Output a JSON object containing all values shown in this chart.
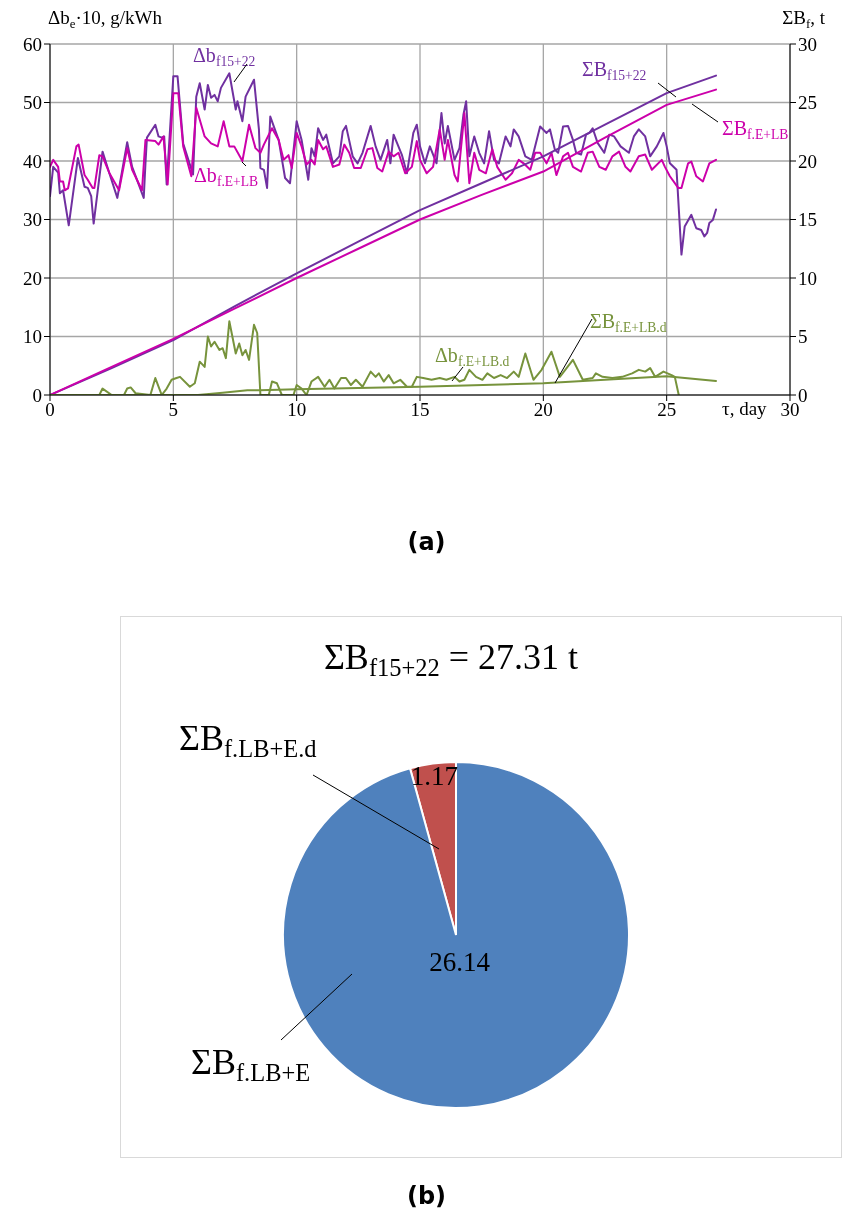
{
  "chart_data": [
    {
      "type": "line",
      "xlabel": "τ, day",
      "ylabel": "Δb$_{e}$·10, g/kWh",
      "y2label": "ΣB$_{f}$, t",
      "annotations": [
        "(a)"
      ],
      "xlim": [
        0,
        30
      ],
      "xticks": [
        0,
        5,
        10,
        15,
        20,
        25,
        30
      ],
      "ylim": [
        0,
        60
      ],
      "yticks": [
        0,
        10,
        20,
        30,
        40,
        50,
        60
      ],
      "y2lim": [
        0,
        30
      ],
      "y2ticks": [
        0,
        5,
        10,
        15,
        20,
        25,
        30
      ],
      "grid": true,
      "marker": "none",
      "line_style": "solid",
      "series": [
        {
          "name": "Δb$_{f15+22}$",
          "color": "#7030a0",
          "x": [
            0,
            0.13,
            0.33,
            0.4,
            0.53,
            0.76,
            1.13,
            1.4,
            1.53,
            1.67,
            1.77,
            2.13,
            2.4,
            2.73,
            3.13,
            3.33,
            3.8,
            3.87,
            3.93,
            4.27,
            4.4,
            4.53,
            4.63,
            4.73,
            5.0,
            5.17,
            5.4,
            5.8,
            5.93,
            6.07,
            6.27,
            6.4,
            6.53,
            6.67,
            6.8,
            6.93,
            7.27,
            7.53,
            7.6,
            7.8,
            7.93,
            8.27,
            8.47,
            8.53,
            8.67,
            8.8,
            8.93,
            9.27,
            9.53,
            9.73,
            10.0,
            10.2,
            10.47,
            10.6,
            10.73,
            10.87,
            11.07,
            11.2,
            11.47,
            11.73,
            11.87,
            12.0,
            12.27,
            12.47,
            12.67,
            13.0,
            13.2,
            13.4,
            13.67,
            13.8,
            13.93,
            14.27,
            14.47,
            14.73,
            14.87,
            15.0,
            15.2,
            15.4,
            15.67,
            15.87,
            16.0,
            16.13,
            16.4,
            16.6,
            16.76,
            16.87,
            17.0,
            17.2,
            17.4,
            17.6,
            17.8,
            18.0,
            18.2,
            18.47,
            18.67,
            18.8,
            19.0,
            19.27,
            19.53,
            19.87,
            20.13,
            20.27,
            20.47,
            20.6,
            20.8,
            21.0,
            21.2,
            21.33,
            21.53,
            21.73,
            21.87,
            22.0,
            22.2,
            22.47,
            22.67,
            22.87,
            23.13,
            23.47,
            23.67,
            23.87,
            24.13,
            24.33,
            24.6,
            24.73,
            24.87,
            25.0,
            25.13,
            25.4,
            25.6,
            25.73,
            26.0,
            26.2,
            26.4,
            26.53,
            26.64,
            26.73,
            26.87,
            27.0
          ],
          "values": [
            34,
            39,
            38,
            34.5,
            35,
            29,
            40.5,
            35.6,
            35.4,
            34,
            29.3,
            41.6,
            38,
            33.7,
            43.2,
            39,
            33.7,
            39.6,
            44,
            46.2,
            44.2,
            44,
            44.2,
            36,
            54.5,
            54.5,
            43,
            37.7,
            51,
            53.3,
            48.8,
            53,
            50.8,
            51.3,
            50.2,
            52.5,
            55,
            48.8,
            50.2,
            46.8,
            51,
            53.9,
            45.4,
            38.8,
            38.5,
            35.4,
            47.6,
            43.6,
            37.1,
            36.2,
            46.8,
            43.6,
            36.8,
            42.2,
            40.8,
            45.6,
            43.6,
            44.5,
            39.6,
            40.8,
            45.1,
            46,
            40.8,
            39.6,
            41.4,
            46,
            42.5,
            40.2,
            43.6,
            39.6,
            44.5,
            41,
            37.9,
            44.8,
            46.2,
            42.5,
            39.6,
            42.5,
            39.6,
            48.2,
            43,
            46,
            40.2,
            42.2,
            47.9,
            50.2,
            40.8,
            44.2,
            41.4,
            39.6,
            45.1,
            40.2,
            39.6,
            44.2,
            42.5,
            45.4,
            44.2,
            40.8,
            40.2,
            45.9,
            44.8,
            45.4,
            41.9,
            41.4,
            45.9,
            46,
            43.6,
            41.4,
            41.1,
            44.5,
            44.8,
            45.6,
            43.1,
            41.4,
            44.5,
            44.2,
            42.5,
            41.4,
            44.2,
            45.4,
            44.2,
            40.8,
            42.5,
            43.6,
            44.8,
            42.5,
            39.6,
            38.5,
            24,
            28.8,
            30.8,
            28.5,
            28.2,
            27.1,
            27.7,
            29.4,
            29.9,
            31.7
          ]
        },
        {
          "name": "Δb$_{f.E+LB}$",
          "color": "#cc00aa",
          "x": [
            0,
            0.13,
            0.33,
            0.4,
            0.53,
            0.6,
            0.73,
            1.07,
            1.16,
            1.4,
            1.53,
            1.73,
            1.8,
            2.0,
            2.13,
            2.4,
            2.8,
            3.13,
            3.33,
            3.73,
            3.87,
            4.27,
            4.4,
            4.6,
            4.77,
            5.0,
            5.2,
            5.4,
            5.73,
            5.93,
            6.27,
            6.53,
            6.8,
            7.04,
            7.27,
            7.47,
            7.8,
            8.07,
            8.33,
            8.53,
            8.67,
            9.0,
            9.27,
            9.47,
            9.67,
            9.8,
            10.0,
            10.2,
            10.4,
            10.6,
            10.73,
            10.87,
            11.07,
            11.2,
            11.47,
            11.73,
            11.93,
            12.13,
            12.33,
            12.6,
            12.87,
            13.07,
            13.27,
            13.47,
            13.73,
            13.93,
            14.13,
            14.4,
            14.67,
            14.87,
            15.0,
            15.27,
            15.53,
            15.8,
            16.0,
            16.13,
            16.4,
            16.53,
            16.8,
            17.0,
            17.2,
            17.4,
            17.67,
            17.93,
            18.13,
            18.47,
            18.73,
            19.0,
            19.2,
            19.47,
            19.67,
            19.87,
            20.13,
            20.33,
            20.53,
            20.8,
            21.0,
            21.2,
            21.53,
            21.8,
            22.0,
            22.27,
            22.53,
            22.8,
            23.07,
            23.33,
            23.53,
            23.87,
            24.13,
            24.4,
            24.8,
            24.93,
            25.13,
            25.47,
            25.6,
            25.87,
            26.0,
            26.2,
            26.47,
            26.73,
            27.0
          ],
          "values": [
            39,
            40.2,
            39,
            36.5,
            36.5,
            35,
            35.3,
            42.5,
            42.8,
            37.6,
            36.8,
            35.4,
            35.4,
            41,
            40.8,
            38,
            35,
            42.2,
            38.5,
            35,
            43.6,
            43.4,
            42.8,
            44.2,
            36,
            51.6,
            51.6,
            42.5,
            37.4,
            49.1,
            44.2,
            43,
            42.5,
            46.8,
            42.5,
            42.5,
            40,
            46.2,
            42.2,
            41.4,
            42.8,
            45.6,
            43.6,
            40.2,
            41,
            38.8,
            44.8,
            42.5,
            39.4,
            40.2,
            39.4,
            43.6,
            42,
            42.5,
            39,
            39.4,
            42.8,
            41.4,
            38.8,
            38.8,
            42,
            42.2,
            38.8,
            38.2,
            41.6,
            40.8,
            41.4,
            37.9,
            39,
            43.4,
            40.2,
            37.9,
            39,
            45.4,
            40.2,
            43.6,
            37.6,
            36.5,
            48.2,
            36.2,
            41.4,
            38.5,
            37.9,
            42,
            39,
            36.8,
            37.9,
            40.2,
            39.6,
            38.5,
            41.4,
            41.4,
            39.6,
            41.4,
            37.6,
            40.8,
            41.4,
            39,
            38.2,
            41.4,
            41.6,
            39,
            38.5,
            40.8,
            41.6,
            39,
            38.2,
            40.8,
            41.1,
            38.5,
            40.2,
            39,
            37.4,
            35.4,
            35.4,
            39.6,
            39.9,
            37.4,
            36.5,
            39.6,
            40.2
          ]
        },
        {
          "name": "Δb$_{f.E+LB.d}$",
          "color": "#77933c",
          "x": [
            0,
            2.0,
            2.13,
            2.5,
            3.0,
            3.13,
            3.27,
            3.47,
            4.07,
            4.27,
            4.53,
            4.73,
            4.93,
            5.13,
            5.27,
            5.67,
            5.87,
            6.07,
            6.27,
            6.4,
            6.53,
            6.67,
            6.87,
            7.0,
            7.13,
            7.27,
            7.53,
            7.67,
            7.8,
            7.93,
            8.07,
            8.27,
            8.4,
            8.53,
            8.87,
            9.0,
            9.2,
            9.4,
            9.87,
            10.0,
            10.2,
            10.4,
            10.6,
            10.87,
            11.13,
            11.33,
            11.53,
            11.8,
            12.0,
            12.2,
            12.4,
            12.67,
            13.0,
            13.2,
            13.33,
            13.53,
            13.73,
            13.93,
            14.2,
            14.47,
            14.67,
            14.87,
            15.13,
            15.47,
            15.8,
            16.07,
            16.4,
            16.6,
            16.8,
            17.0,
            17.27,
            17.53,
            17.73,
            18.0,
            18.27,
            18.53,
            18.8,
            19.0,
            19.27,
            19.6,
            19.93,
            20.33,
            20.67,
            21.2,
            21.6,
            22.0,
            22.13,
            22.4,
            22.8,
            23.2,
            23.6,
            23.87,
            24.13,
            24.33,
            24.53,
            24.87,
            25.2,
            25.33,
            25.49
          ],
          "values": [
            0,
            0,
            1.1,
            0,
            0,
            1.1,
            1.3,
            0.3,
            0,
            2.9,
            0,
            1.1,
            2.6,
            2.9,
            3.1,
            1.4,
            2.0,
            5.7,
            4.8,
            10,
            8.3,
            9.1,
            7.7,
            8,
            6.3,
            12.6,
            7.1,
            8.8,
            6.8,
            7.7,
            6.0,
            12,
            10.6,
            0,
            0,
            2.3,
            2,
            0,
            0,
            1.7,
            1.1,
            0,
            2.3,
            3.1,
            1.4,
            2.6,
            1.1,
            2.9,
            2.9,
            1.7,
            2.6,
            1.4,
            4,
            3.1,
            3.7,
            2.3,
            3.4,
            2,
            2.6,
            1.4,
            1.4,
            3.1,
            2.9,
            2.6,
            2.9,
            2.6,
            3.1,
            2.3,
            2.6,
            4.3,
            3.1,
            2.6,
            3.7,
            2.9,
            3.4,
            2.9,
            4,
            3.1,
            7.1,
            2.6,
            4.3,
            7.4,
            3.1,
            6.0,
            2.6,
            2.9,
            3.7,
            3.1,
            2.9,
            3.1,
            3.7,
            4.3,
            4.0,
            4.6,
            3.1,
            4.0,
            3.4,
            3.1,
            0
          ]
        },
        {
          "name": "ΣB$_{f15+22}$",
          "color": "#7030a0",
          "axis": "y2",
          "x": [
            0,
            2.5,
            5,
            7.5,
            10,
            12.5,
            15,
            17.5,
            20,
            22.5,
            25,
            27
          ],
          "values": [
            0,
            2.3,
            4.7,
            7.6,
            10.4,
            13.1,
            15.8,
            18.1,
            20.4,
            23.1,
            25.8,
            27.3
          ]
        },
        {
          "name": "ΣB$_{f.E+LB}$",
          "color": "#cc00aa",
          "axis": "y2",
          "x": [
            0,
            2.5,
            5,
            7.5,
            10,
            12.5,
            15,
            17.5,
            20,
            22.5,
            25,
            27
          ],
          "values": [
            0,
            2.4,
            4.8,
            7.4,
            10.0,
            12.5,
            15.0,
            17.1,
            19.1,
            22.0,
            24.8,
            26.1
          ]
        },
        {
          "name": "ΣB$_{f.E+LB.d}$",
          "color": "#77933c",
          "axis": "y2",
          "x": [
            0,
            6,
            7,
            8,
            8.5,
            10,
            15,
            20,
            25,
            27
          ],
          "values": [
            0,
            0,
            0.2,
            0.4,
            0.4,
            0.5,
            0.7,
            1.0,
            1.6,
            1.2
          ]
        }
      ]
    },
    {
      "type": "pie",
      "title": "ΣB$_{f15+22}$ = 27.31 t",
      "annotations": [
        "(b)"
      ],
      "data_labels": true,
      "categories": [
        "ΣB$_{f.LB+E.d}$",
        "ΣB$_{f.LB+E}$"
      ],
      "values": [
        1.17,
        26.14
      ],
      "colors": [
        "#c0504d",
        "#4f81bd"
      ]
    }
  ]
}
